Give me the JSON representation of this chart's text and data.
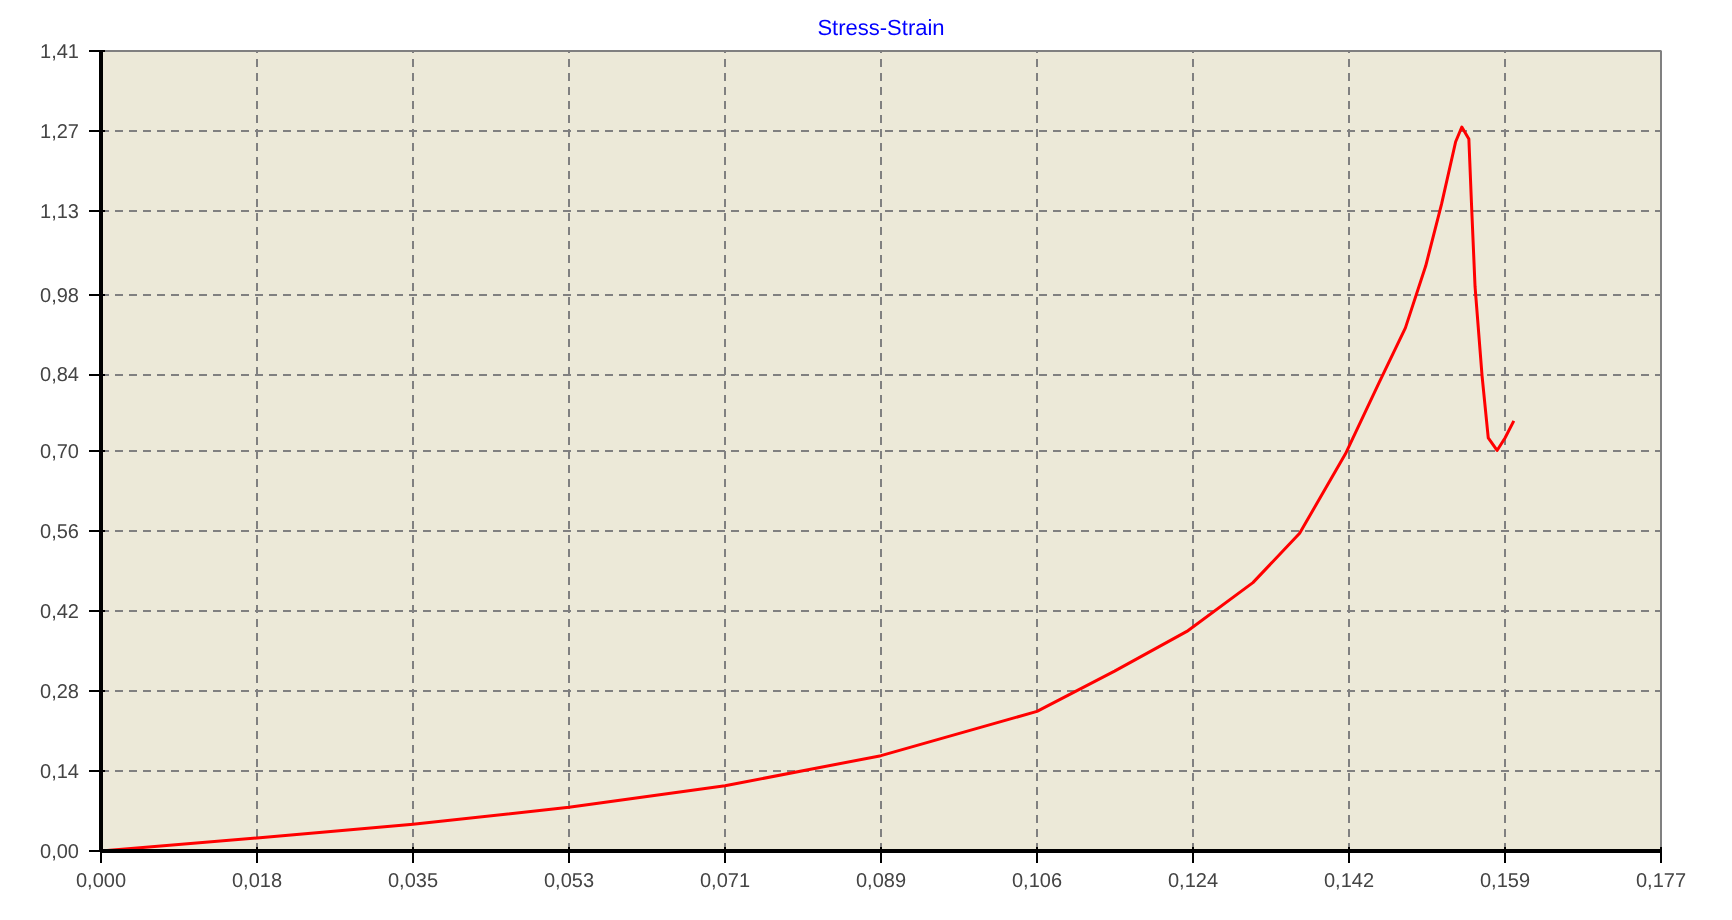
{
  "chart_data": {
    "type": "line",
    "title": "Stress-Strain",
    "x": [
      0,
      0.0177,
      0.0354,
      0.0531,
      0.0708,
      0.0885,
      0.1062,
      0.115,
      0.1232,
      0.1307,
      0.136,
      0.1412,
      0.145,
      0.148,
      0.1503,
      0.1521,
      0.1537,
      0.1544,
      0.1552,
      0.1555,
      0.1559,
      0.1567,
      0.1574,
      0.1584,
      0.1593,
      0.1603
    ],
    "series": [
      {
        "color": "#ff0000",
        "values": [
          0.0,
          0.023,
          0.047,
          0.077,
          0.115,
          0.168,
          0.246,
          0.317,
          0.387,
          0.473,
          0.56,
          0.7,
          0.825,
          0.922,
          1.031,
          1.14,
          1.25,
          1.276,
          1.255,
          1.14,
          0.995,
          0.837,
          0.728,
          0.706,
          0.728,
          0.758
        ]
      }
    ],
    "xlim": [
      0,
      0.177
    ],
    "ylim": [
      0,
      1.41
    ],
    "xticks": [
      {
        "value": 0,
        "label": "0,000"
      },
      {
        "value": 0.0177,
        "label": "0,018"
      },
      {
        "value": 0.0354,
        "label": "0,035"
      },
      {
        "value": 0.0531,
        "label": "0,053"
      },
      {
        "value": 0.0708,
        "label": "0,071"
      },
      {
        "value": 0.0885,
        "label": "0,089"
      },
      {
        "value": 0.1062,
        "label": "0,106"
      },
      {
        "value": 0.1239,
        "label": "0,124"
      },
      {
        "value": 0.1416,
        "label": "0,142"
      },
      {
        "value": 0.1593,
        "label": "0,159"
      },
      {
        "value": 0.177,
        "label": "0,177"
      }
    ],
    "yticks": [
      {
        "value": 0,
        "label": "0,00"
      },
      {
        "value": 0.141,
        "label": "0,14"
      },
      {
        "value": 0.282,
        "label": "0,28"
      },
      {
        "value": 0.423,
        "label": "0,42"
      },
      {
        "value": 0.564,
        "label": "0,56"
      },
      {
        "value": 0.705,
        "label": "0,70"
      },
      {
        "value": 0.84,
        "label": "0,84"
      },
      {
        "value": 0.98,
        "label": "0,98"
      },
      {
        "value": 1.128,
        "label": "1,13"
      },
      {
        "value": 1.269,
        "label": "1,27"
      },
      {
        "value": 1.41,
        "label": "1,41"
      }
    ],
    "grid": true,
    "line_style": "solid"
  }
}
